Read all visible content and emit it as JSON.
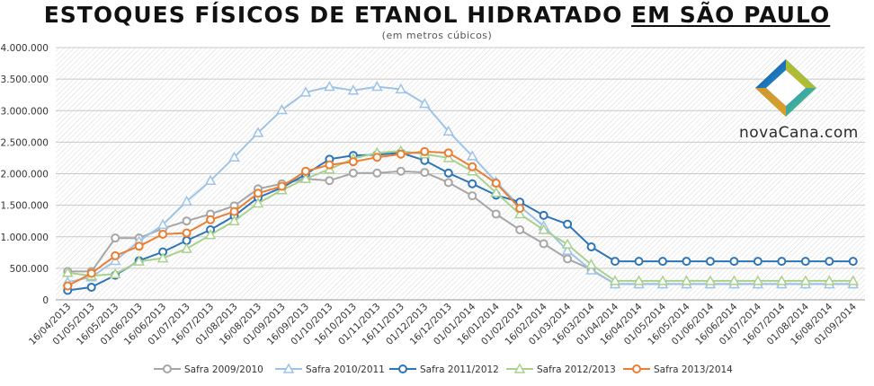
{
  "header": {
    "title_part1": "ESTOQUES FÍSICOS DE ETANOL HIDRATADO ",
    "title_part2": "EM SÃO PAULO",
    "subtitle": "(em metros cúbicos)"
  },
  "logo": {
    "text": "novaCana.com",
    "icon": "diamond-logo-icon"
  },
  "chart_data": {
    "type": "line",
    "title": "ESTOQUES FÍSICOS DE ETANOL HIDRATADO EM SÃO PAULO",
    "subtitle": "(em metros cúbicos)",
    "xlabel": "",
    "ylabel": "",
    "ylim": [
      0,
      4000000
    ],
    "y_ticks": [
      0,
      500000,
      1000000,
      1500000,
      2000000,
      2500000,
      3000000,
      3500000,
      4000000
    ],
    "y_tick_labels": [
      "0",
      "500.000",
      "1.000.000",
      "1.500.000",
      "2.000.000",
      "2.500.000",
      "3.000.000",
      "3.500.000",
      "4.000.000"
    ],
    "grid": "hatched",
    "legend": "bottom",
    "categories": [
      "16/04/2013",
      "01/05/2013",
      "16/05/2013",
      "01/06/2013",
      "16/06/2013",
      "01/07/2013",
      "16/07/2013",
      "01/08/2013",
      "16/08/2013",
      "01/09/2013",
      "16/09/2013",
      "01/10/2013",
      "16/10/2013",
      "01/11/2013",
      "16/11/2013",
      "01/12/2013",
      "16/12/2013",
      "01/01/2014",
      "16/01/2014",
      "01/02/2014",
      "16/02/2014",
      "01/03/2014",
      "16/03/2014",
      "01/04/2014",
      "16/04/2014",
      "01/05/2014",
      "16/05/2014",
      "01/06/2014",
      "16/06/2014",
      "01/07/2014",
      "16/07/2014",
      "01/08/2014",
      "16/08/2014",
      "01/09/2014"
    ],
    "series": [
      {
        "name": "Safra 2009/2010",
        "color": "#a6a6a6",
        "marker": "circle",
        "values": [
          450000,
          450000,
          980000,
          980000,
          1130000,
          1250000,
          1360000,
          1490000,
          1760000,
          1840000,
          1920000,
          1890000,
          2010000,
          2010000,
          2040000,
          2020000,
          1860000,
          1650000,
          1360000,
          1110000,
          890000,
          650000,
          480000,
          250000,
          250000,
          250000,
          250000,
          250000,
          250000,
          250000,
          250000,
          250000,
          250000,
          250000
        ]
      },
      {
        "name": "Safra 2010/2011",
        "color": "#9dc3e6",
        "marker": "triangle",
        "values": [
          280000,
          360000,
          620000,
          930000,
          1190000,
          1560000,
          1890000,
          2260000,
          2650000,
          3010000,
          3290000,
          3380000,
          3320000,
          3380000,
          3340000,
          3110000,
          2670000,
          2280000,
          1870000,
          1480000,
          1170000,
          780000,
          470000,
          250000,
          250000,
          250000,
          250000,
          250000,
          250000,
          250000,
          250000,
          250000,
          250000,
          250000
        ]
      },
      {
        "name": "Safra 2011/2012",
        "color": "#2e75b6",
        "marker": "circle",
        "values": [
          150000,
          200000,
          390000,
          620000,
          760000,
          940000,
          1110000,
          1330000,
          1620000,
          1780000,
          1990000,
          2230000,
          2290000,
          2300000,
          2330000,
          2210000,
          2010000,
          1840000,
          1660000,
          1550000,
          1340000,
          1200000,
          840000,
          610000,
          610000,
          610000,
          610000,
          610000,
          610000,
          610000,
          610000,
          610000,
          610000,
          610000
        ]
      },
      {
        "name": "Safra 2012/2013",
        "color": "#a9d18e",
        "marker": "triangle",
        "values": [
          430000,
          380000,
          410000,
          610000,
          660000,
          810000,
          1030000,
          1250000,
          1530000,
          1740000,
          1920000,
          2070000,
          2240000,
          2330000,
          2360000,
          2310000,
          2250000,
          2040000,
          1700000,
          1360000,
          1110000,
          880000,
          560000,
          300000,
          300000,
          300000,
          300000,
          300000,
          300000,
          300000,
          300000,
          300000,
          300000,
          300000
        ]
      },
      {
        "name": "Safra 2013/2014",
        "color": "#ed7d31",
        "marker": "circle",
        "values": [
          220000,
          420000,
          700000,
          850000,
          1040000,
          1060000,
          1270000,
          1400000,
          1690000,
          1800000,
          2040000,
          2140000,
          2190000,
          2260000,
          2310000,
          2350000,
          2330000,
          2110000,
          1850000,
          1450000,
          null,
          null,
          null,
          null,
          null,
          null,
          null,
          null,
          null,
          null,
          null,
          null,
          null,
          null
        ]
      }
    ]
  }
}
